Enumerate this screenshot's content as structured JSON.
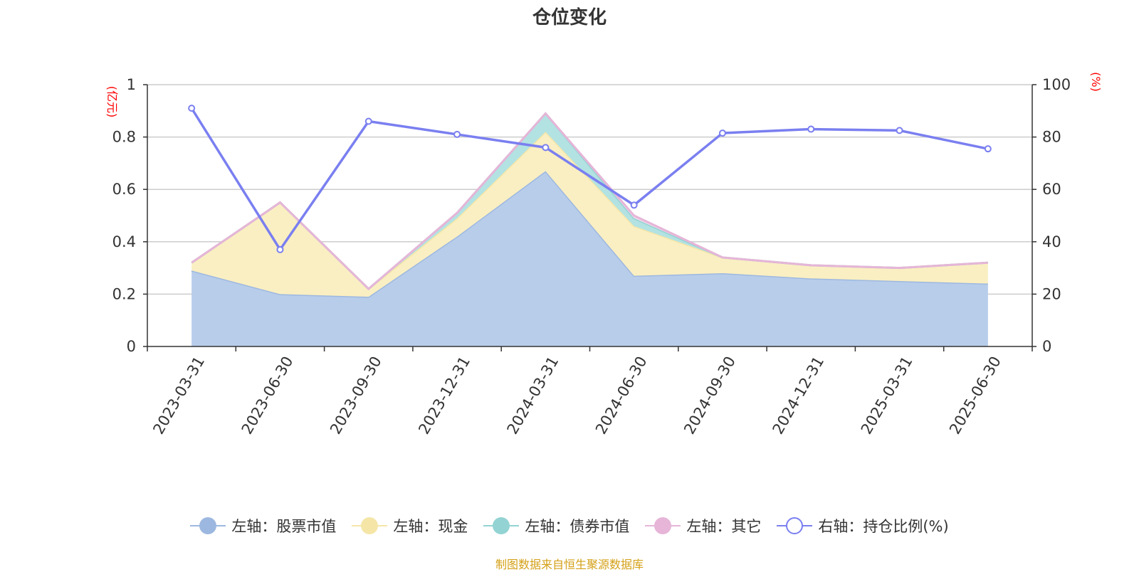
{
  "title": "仓位变化",
  "source": "制图数据来自恒生聚源数据库",
  "chart_data": {
    "type": "area",
    "categories": [
      "2023-03-31",
      "2023-06-30",
      "2023-09-30",
      "2023-12-31",
      "2024-03-31",
      "2024-06-30",
      "2024-09-30",
      "2024-12-31",
      "2025-03-31",
      "2025-06-30"
    ],
    "left_axis": {
      "unit": "(亿元)",
      "ylim": [
        0,
        1
      ],
      "ticks": [
        "0",
        "0.2",
        "0.4",
        "0.6",
        "0.8",
        "1"
      ]
    },
    "right_axis": {
      "unit": "(%)",
      "ylim": [
        0,
        100
      ],
      "ticks": [
        "0",
        "20",
        "40",
        "60",
        "80",
        "100"
      ]
    },
    "grid": true,
    "legend_position": "bottom",
    "series": [
      {
        "name": "左轴：股票市值",
        "axis": "left",
        "type": "area",
        "color": "#9db8e0",
        "fill": "#b8cdea",
        "values": [
          0.29,
          0.2,
          0.19,
          0.42,
          0.67,
          0.27,
          0.28,
          0.26,
          0.25,
          0.24
        ]
      },
      {
        "name": "左轴：现金",
        "axis": "left",
        "type": "area",
        "color": "#f5e6a8",
        "fill": "#faefc2",
        "values": [
          0.03,
          0.35,
          0.03,
          0.07,
          0.15,
          0.19,
          0.06,
          0.05,
          0.05,
          0.08
        ]
      },
      {
        "name": "左轴：债券市值",
        "axis": "left",
        "type": "area",
        "color": "#93d3d3",
        "fill": "#b3e2e2",
        "values": [
          0,
          0,
          0,
          0.02,
          0.07,
          0.03,
          0,
          0,
          0,
          0
        ]
      },
      {
        "name": "左轴：其它",
        "axis": "left",
        "type": "area",
        "color": "#e6b5d8",
        "fill": "#f2d9ea",
        "values": [
          0,
          0,
          0,
          0,
          0,
          0.01,
          0,
          0,
          0,
          0
        ]
      },
      {
        "name": "右轴：持仓比例(%)",
        "axis": "right",
        "type": "line",
        "color": "#7a7ff0",
        "values": [
          91,
          37,
          86,
          81,
          76,
          54,
          81.5,
          83,
          82.5,
          75.5
        ]
      }
    ]
  }
}
